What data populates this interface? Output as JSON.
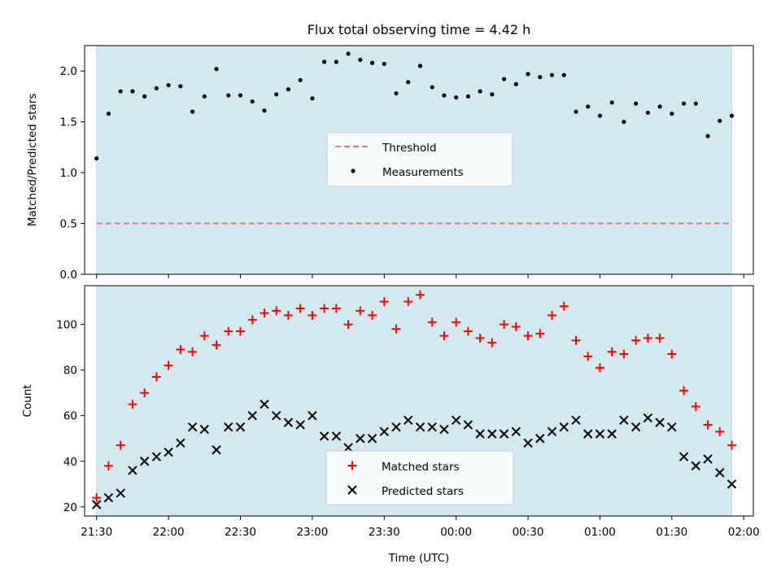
{
  "chart_data": [
    {
      "type": "scatter",
      "title": "Flux total observing time = 4.42 h",
      "ylabel": "Matched/Predicted stars",
      "xlabel": "",
      "xlim": [
        "21:25",
        "02:04"
      ],
      "ylim": [
        0,
        2.25
      ],
      "yticks": [
        0.0,
        0.5,
        1.0,
        1.5,
        2.0
      ],
      "ytick_labels": [
        "0.0",
        "0.5",
        "1.0",
        "1.5",
        "2.0"
      ],
      "grid": false,
      "legend": "center",
      "shaded_span": {
        "start": "21:30",
        "end": "01:55",
        "color": "#d3e9f0"
      },
      "threshold": {
        "name": "Threshold",
        "value": 0.5,
        "color": "#f07272",
        "style": "dashed"
      },
      "series": [
        {
          "name": "Measurements",
          "color": "#000000",
          "x": [
            "21:30",
            "21:35",
            "21:40",
            "21:45",
            "21:50",
            "21:55",
            "22:00",
            "22:05",
            "22:10",
            "22:15",
            "22:20",
            "22:25",
            "22:30",
            "22:35",
            "22:40",
            "22:45",
            "22:50",
            "22:55",
            "23:00",
            "23:05",
            "23:10",
            "23:15",
            "23:20",
            "23:25",
            "23:30",
            "23:35",
            "23:40",
            "23:45",
            "23:50",
            "23:55",
            "00:00",
            "00:05",
            "00:10",
            "00:15",
            "00:20",
            "00:25",
            "00:30",
            "00:35",
            "00:40",
            "00:45",
            "00:50",
            "00:55",
            "01:00",
            "01:05",
            "01:10",
            "01:15",
            "01:20",
            "01:25",
            "01:30",
            "01:35",
            "01:40",
            "01:45",
            "01:50",
            "01:55"
          ],
          "y": [
            1.14,
            1.58,
            1.8,
            1.8,
            1.75,
            1.83,
            1.86,
            1.85,
            1.6,
            1.75,
            2.02,
            1.76,
            1.76,
            1.7,
            1.61,
            1.77,
            1.82,
            1.91,
            1.73,
            2.09,
            2.09,
            2.17,
            2.11,
            2.08,
            2.07,
            1.78,
            1.89,
            2.05,
            1.84,
            1.76,
            1.74,
            1.75,
            1.8,
            1.77,
            1.92,
            1.87,
            1.97,
            1.94,
            1.96,
            1.96,
            1.6,
            1.65,
            1.56,
            1.69,
            1.5,
            1.68,
            1.59,
            1.65,
            1.58,
            1.68,
            1.68,
            1.36,
            1.51,
            1.56
          ]
        }
      ]
    },
    {
      "type": "scatter",
      "title": "",
      "ylabel": "Count",
      "xlabel": "Time (UTC)",
      "xlim": [
        "21:25",
        "02:04"
      ],
      "ylim": [
        16,
        117
      ],
      "yticks": [
        20,
        40,
        60,
        80,
        100
      ],
      "ytick_labels": [
        "20",
        "40",
        "60",
        "80",
        "100"
      ],
      "xticks": [
        "21:30",
        "22:00",
        "22:30",
        "23:00",
        "23:30",
        "00:00",
        "00:30",
        "01:00",
        "01:30",
        "02:00"
      ],
      "grid": false,
      "legend": "bottom-center",
      "shaded_span": {
        "start": "21:30",
        "end": "01:55",
        "color": "#d3e9f0"
      },
      "series": [
        {
          "name": "Matched stars",
          "marker": "+",
          "color": "#ff0000",
          "x": [
            "21:30",
            "21:35",
            "21:40",
            "21:45",
            "21:50",
            "21:55",
            "22:00",
            "22:05",
            "22:10",
            "22:15",
            "22:20",
            "22:25",
            "22:30",
            "22:35",
            "22:40",
            "22:45",
            "22:50",
            "22:55",
            "23:00",
            "23:05",
            "23:10",
            "23:15",
            "23:20",
            "23:25",
            "23:30",
            "23:35",
            "23:40",
            "23:45",
            "23:50",
            "23:55",
            "00:00",
            "00:05",
            "00:10",
            "00:15",
            "00:20",
            "00:25",
            "00:30",
            "00:35",
            "00:40",
            "00:45",
            "00:50",
            "00:55",
            "01:00",
            "01:05",
            "01:10",
            "01:15",
            "01:20",
            "01:25",
            "01:30",
            "01:35",
            "01:40",
            "01:45",
            "01:50",
            "01:55"
          ],
          "y": [
            24,
            38,
            47,
            65,
            70,
            77,
            82,
            89,
            88,
            95,
            91,
            97,
            97,
            102,
            105,
            106,
            104,
            107,
            104,
            107,
            107,
            100,
            106,
            104,
            110,
            98,
            110,
            113,
            101,
            95,
            101,
            97,
            94,
            92,
            100,
            99,
            95,
            96,
            104,
            108,
            93,
            86,
            81,
            88,
            87,
            93,
            94,
            94,
            87,
            71,
            64,
            56,
            53,
            47
          ]
        },
        {
          "name": "Predicted stars",
          "marker": "x",
          "color": "#000000",
          "x": [
            "21:30",
            "21:35",
            "21:40",
            "21:45",
            "21:50",
            "21:55",
            "22:00",
            "22:05",
            "22:10",
            "22:15",
            "22:20",
            "22:25",
            "22:30",
            "22:35",
            "22:40",
            "22:45",
            "22:50",
            "22:55",
            "23:00",
            "23:05",
            "23:10",
            "23:15",
            "23:20",
            "23:25",
            "23:30",
            "23:35",
            "23:40",
            "23:45",
            "23:50",
            "23:55",
            "00:00",
            "00:05",
            "00:10",
            "00:15",
            "00:20",
            "00:25",
            "00:30",
            "00:35",
            "00:40",
            "00:45",
            "00:50",
            "00:55",
            "01:00",
            "01:05",
            "01:10",
            "01:15",
            "01:20",
            "01:25",
            "01:30",
            "01:35",
            "01:40",
            "01:45",
            "01:50",
            "01:55"
          ],
          "y": [
            21,
            24,
            26,
            36,
            40,
            42,
            44,
            48,
            55,
            54,
            45,
            55,
            55,
            60,
            65,
            60,
            57,
            56,
            60,
            51,
            51,
            46,
            50,
            50,
            53,
            55,
            58,
            55,
            55,
            54,
            58,
            56,
            52,
            52,
            52,
            53,
            48,
            50,
            53,
            55,
            58,
            52,
            52,
            52,
            58,
            55,
            59,
            57,
            55,
            42,
            38,
            41,
            35,
            30
          ]
        }
      ]
    }
  ]
}
